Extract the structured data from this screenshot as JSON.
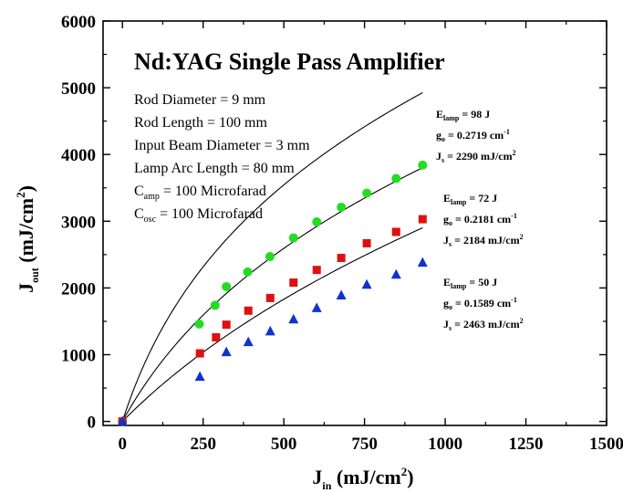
{
  "chart_data": {
    "type": "scatter",
    "title": "Nd:YAG Single Pass Amplifier",
    "xlabel": {
      "main": "J",
      "sub": "in",
      "unit_pre": " (mJ/cm",
      "unit_sup": "2",
      "unit_post": ")"
    },
    "ylabel": {
      "main": "J",
      "sub": "out",
      "unit_pre": " (mJ/cm",
      "unit_sup": "2",
      "unit_post": ")"
    },
    "xlim": [
      -60,
      1500
    ],
    "ylim": [
      -60,
      6000
    ],
    "xticks": [
      0,
      250,
      500,
      750,
      1000,
      1250,
      1500
    ],
    "yticks": [
      0,
      1000,
      2000,
      3000,
      4000,
      5000,
      6000
    ],
    "grid": false,
    "legend": "none",
    "specs": [
      {
        "text": "Rod Diameter = 9 mm"
      },
      {
        "text": "Rod Length = 100 mm"
      },
      {
        "text": "Input Beam Diameter = 3 mm"
      },
      {
        "text": "Lamp Arc Length = 80 mm"
      },
      {
        "main": "C",
        "sub": "amp",
        "rest": " = 100 Microfarad"
      },
      {
        "main": "C",
        "sub": "osc",
        "rest": " = 100 Microfarad"
      }
    ],
    "series": [
      {
        "marker": "circle",
        "color": "#22dd22",
        "x": [
          0,
          238,
          287,
          322,
          388,
          457,
          530,
          602,
          678,
          757,
          848,
          930
        ],
        "y": [
          0,
          1460,
          1740,
          2020,
          2240,
          2470,
          2750,
          2990,
          3210,
          3420,
          3640,
          3840
        ],
        "fit": {
          "g0": 0.2719,
          "Js": 2290
        },
        "label": {
          "E_main": "E",
          "E_sub": "lamp",
          "E_rest": " = 98 J",
          "g_main": "g",
          "g_sub": "o",
          "g_rest": " = 0.2719 cm",
          "g_sup": "-1",
          "J_main": "J",
          "J_sub": "s",
          "J_rest": " = 2290  mJ/cm",
          "J_sup": "2"
        }
      },
      {
        "marker": "square",
        "color": "#dd1111",
        "x": [
          0,
          240,
          290,
          322,
          390,
          458,
          530,
          602,
          678,
          757,
          848,
          930
        ],
        "y": [
          0,
          1020,
          1260,
          1450,
          1660,
          1850,
          2080,
          2270,
          2450,
          2670,
          2840,
          3030
        ],
        "fit": {
          "g0": 0.2181,
          "Js": 2184
        },
        "label": {
          "E_main": "E",
          "E_sub": "lamp",
          "E_rest": " = 72 J",
          "g_main": "g",
          "g_sub": "o",
          "g_rest": " = 0.2181 cm",
          "g_sup": "-1",
          "J_main": "J",
          "J_sub": "s",
          "J_rest": " = 2184 mJ/cm",
          "J_sup": "2"
        }
      },
      {
        "marker": "triangle",
        "color": "#1133cc",
        "x": [
          0,
          240,
          322,
          390,
          458,
          530,
          602,
          678,
          757,
          848,
          930
        ],
        "y": [
          0,
          670,
          1040,
          1190,
          1350,
          1530,
          1700,
          1890,
          2050,
          2200,
          2380
        ],
        "fit": {
          "g0": 0.1589,
          "Js": 2463
        },
        "label": {
          "E_main": "E",
          "E_sub": "lamp",
          "E_rest": " = 50 J",
          "g_main": "g",
          "g_sub": "o",
          "g_rest": " = 0.1589 cm",
          "g_sup": "-1",
          "J_main": "J",
          "J_sub": "s",
          "J_rest": " = 2463 mJ/cm",
          "J_sup": "2"
        }
      }
    ]
  }
}
